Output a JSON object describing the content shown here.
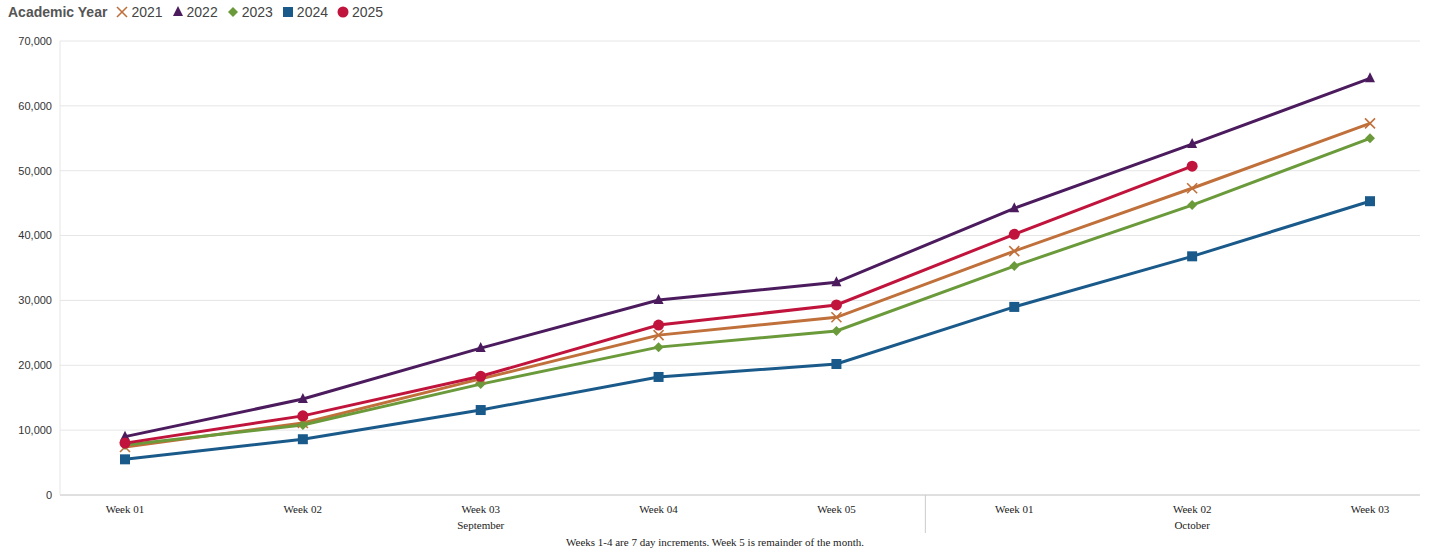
{
  "chart_data": {
    "type": "line",
    "legend_title": "Academic Year",
    "legend": "top left",
    "grid": true,
    "caption": "Weeks 1-4 are 7 day increments. Week 5 is remainder of the month.",
    "categories": [
      "Week 01",
      "Week 02",
      "Week 03",
      "Week 04",
      "Week 05",
      "Week 01",
      "Week 02",
      "Week 03"
    ],
    "category_groups": [
      {
        "label": "September",
        "count": 5
      },
      {
        "label": "October",
        "count": 3
      }
    ],
    "ylim": [
      0,
      70000
    ],
    "yticks": [
      0,
      {
        "value": 10000,
        "label": "10,000"
      },
      {
        "value": 20000,
        "label": "20,000"
      },
      {
        "value": 30000,
        "label": "30,000"
      },
      {
        "value": 40000,
        "label": "40,000"
      },
      {
        "value": 50000,
        "label": "50,000"
      },
      {
        "value": 60000,
        "label": "60,000"
      },
      {
        "value": 70000,
        "label": "70,000"
      }
    ],
    "series": [
      {
        "name": "2021",
        "color": "#c0703a",
        "marker": "x",
        "values": [
          7400,
          11100,
          17900,
          24650,
          27400,
          37600,
          47300,
          57300
        ]
      },
      {
        "name": "2022",
        "color": "#4b1b5e",
        "marker": "triangle",
        "values": [
          9000,
          14800,
          22650,
          30050,
          32800,
          44200,
          54100,
          64250
        ]
      },
      {
        "name": "2023",
        "color": "#6b9a3b",
        "marker": "diamond",
        "values": [
          7700,
          10800,
          17100,
          22800,
          25300,
          35300,
          44700,
          55000
        ]
      },
      {
        "name": "2024",
        "color": "#1a5a8a",
        "marker": "square",
        "values": [
          5500,
          8600,
          13100,
          18200,
          20200,
          29000,
          36800,
          45300
        ]
      },
      {
        "name": "2025",
        "color": "#c0143c",
        "marker": "circle",
        "values": [
          8000,
          12200,
          18300,
          26200,
          29300,
          40200,
          50700,
          null
        ]
      }
    ]
  }
}
